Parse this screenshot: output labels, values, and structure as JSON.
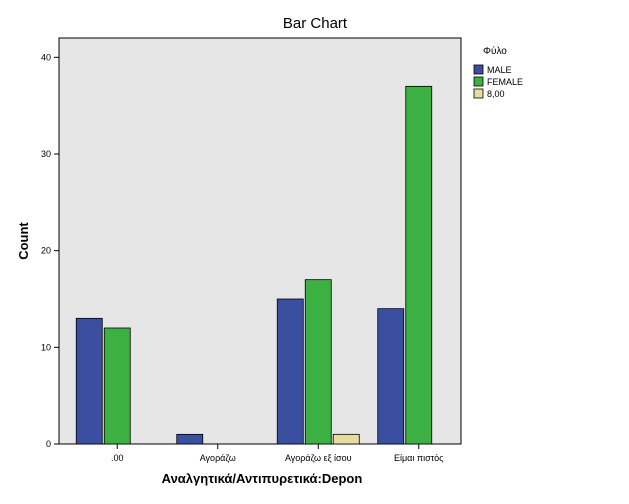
{
  "chart_data": {
    "type": "bar",
    "title": "Bar Chart",
    "xlabel": "Αναλγητικά/Αντιπυρετικά:Depon",
    "ylabel": "Count",
    "categories": [
      ".00",
      "Αγοράζω",
      "Αγοράζω εξ ίσου",
      "Είμαι πιστός"
    ],
    "ylim": [
      0,
      42
    ],
    "yticks": [
      0,
      10,
      20,
      30,
      40
    ],
    "grid": false,
    "legend": {
      "title": "Φύλο",
      "placement": "right"
    },
    "series": [
      {
        "name": "MALE",
        "color": "#3b4fa0",
        "values": [
          13,
          1,
          15,
          14
        ]
      },
      {
        "name": "FEMALE",
        "color": "#3cb043",
        "values": [
          12,
          0,
          17,
          37
        ]
      },
      {
        "name": "8,00",
        "color": "#e6dca2",
        "values": [
          0,
          0,
          1,
          0
        ]
      }
    ],
    "plot_background": "#e6e6e6"
  }
}
